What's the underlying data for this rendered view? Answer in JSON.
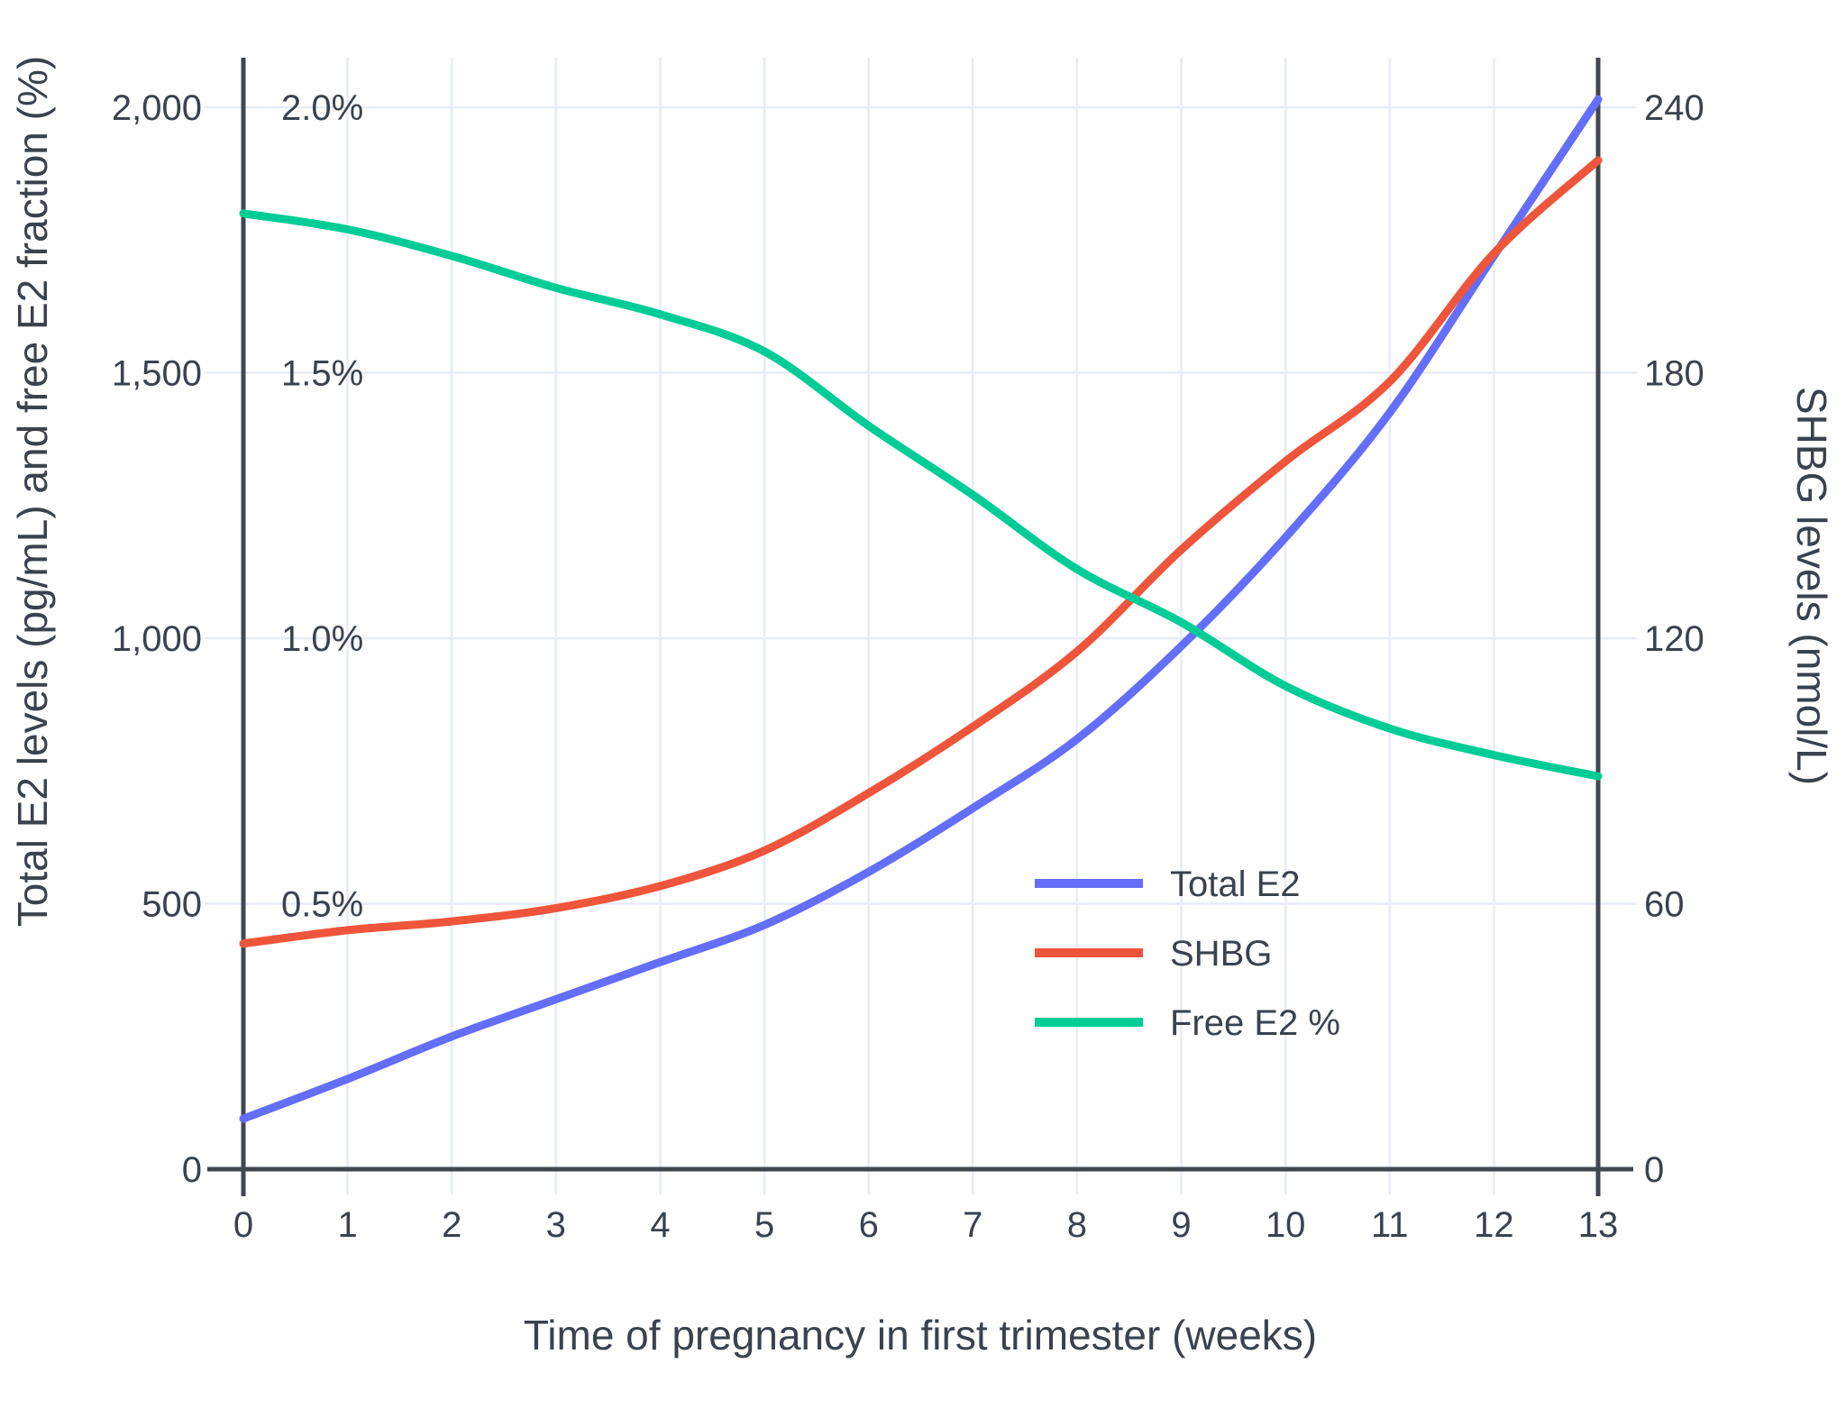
{
  "chart_data": {
    "type": "line",
    "xlabel": "Time of pregnancy in first trimester (weeks)",
    "ylabel_left": "Total E2 levels (pg/mL) and free E2 fraction (%)",
    "ylabel_right": "SHBG levels (nmol/L)",
    "x": [
      0,
      1,
      2,
      3,
      4,
      5,
      6,
      7,
      8,
      9,
      10,
      11,
      12,
      13
    ],
    "x_tick_labels": [
      "0",
      "1",
      "2",
      "3",
      "4",
      "5",
      "6",
      "7",
      "8",
      "9",
      "10",
      "11",
      "12",
      "13"
    ],
    "left_axis": {
      "tick_labels": [
        "0",
        "500",
        "1,000",
        "1,500",
        "2,000"
      ],
      "tick_values": [
        0,
        500,
        1000,
        1500,
        2000
      ],
      "range": [
        0,
        2093
      ]
    },
    "right_axis": {
      "tick_labels": [
        "0",
        "60",
        "120",
        "180",
        "240"
      ],
      "tick_values": [
        0,
        60,
        120,
        180,
        240
      ],
      "range": [
        0,
        251
      ]
    },
    "pct_annotations": [
      {
        "label": "2.0%",
        "value_left_axis": 2000
      },
      {
        "label": "1.5%",
        "value_left_axis": 1500
      },
      {
        "label": "1.0%",
        "value_left_axis": 1000
      },
      {
        "label": "0.5%",
        "value_left_axis": 500
      }
    ],
    "series": [
      {
        "name": "Total E2",
        "color": "#636EFA",
        "axis": "left",
        "units": "pg/mL",
        "values": [
          95,
          170,
          250,
          320,
          390,
          460,
          560,
          680,
          810,
          985,
          1190,
          1425,
          1720,
          2015
        ]
      },
      {
        "name": "SHBG",
        "color": "#EF553B",
        "axis": "right",
        "units": "nmol/L",
        "values": [
          51,
          54,
          56,
          59,
          64,
          72,
          85,
          100,
          117,
          140,
          160,
          178,
          207,
          228
        ]
      },
      {
        "name": "Free E2 %",
        "color": "#00CC96",
        "axis": "left_pct",
        "units": "%",
        "values": [
          1.8,
          1.77,
          1.72,
          1.66,
          1.61,
          1.54,
          1.4,
          1.27,
          1.13,
          1.03,
          0.91,
          0.83,
          0.78,
          0.74
        ]
      }
    ],
    "legend": {
      "position": "inside-right",
      "items": [
        "Total E2",
        "SHBG",
        "Free E2 %"
      ]
    },
    "grid": "on"
  },
  "colors": {
    "background": "#ffffff",
    "gridline": "#e7ecf7",
    "axis_line": "#42474f",
    "text": "#3a424e",
    "series_blue": "#636EFA",
    "series_red": "#EF553B",
    "series_green": "#00CC96"
  }
}
